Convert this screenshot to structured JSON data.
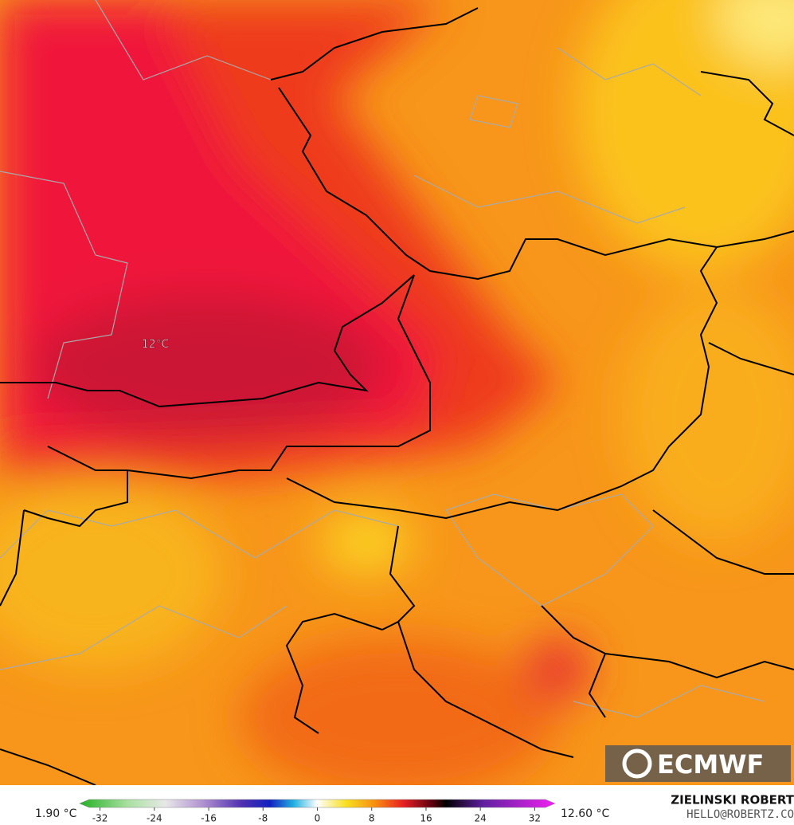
{
  "map": {
    "label": "12°C"
  },
  "logo": {
    "text": "ECMWF"
  },
  "colorbar": {
    "min_label": "1.90 °C",
    "max_label": "12.60 °C",
    "lim": [
      -35,
      35
    ],
    "ticks": [
      -32,
      -24,
      -16,
      -8,
      0,
      8,
      16,
      24,
      32
    ]
  },
  "credit": {
    "name": "ZIELINSKI ROBERT",
    "contact": "HELLO@ROBERTZ.CO"
  }
}
